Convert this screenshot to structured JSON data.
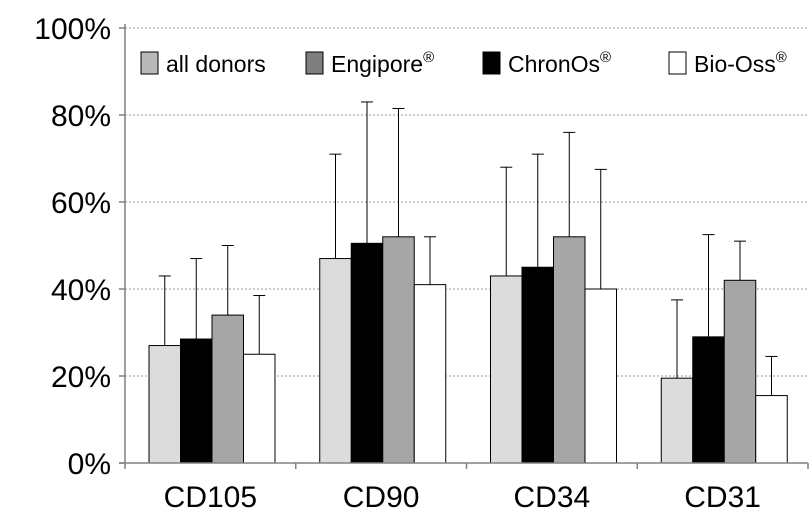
{
  "chart_data": {
    "type": "bar",
    "categories": [
      "CD105",
      "CD90",
      "CD34",
      "CD31"
    ],
    "series": [
      {
        "name": "all donors",
        "values": [
          27,
          47,
          43,
          19.5
        ],
        "errors": [
          16,
          24,
          25,
          18
        ],
        "color": "#dcdcdc"
      },
      {
        "name": "ChronOs",
        "values": [
          28.5,
          50.5,
          45,
          29
        ],
        "errors": [
          18.5,
          32.5,
          26,
          23.5
        ],
        "color": "#000000"
      },
      {
        "name": "Engipore",
        "values": [
          34,
          52,
          52,
          42
        ],
        "errors": [
          16,
          29.5,
          24,
          9
        ],
        "color": "#a6a6a6"
      },
      {
        "name": "Bio-Oss",
        "values": [
          25,
          41,
          40,
          15.5
        ],
        "errors": [
          13.5,
          11,
          27.5,
          9
        ],
        "color": "#ffffff"
      }
    ],
    "legend": [
      {
        "name": "all donors",
        "superscript": "",
        "color": "#b9b9b9"
      },
      {
        "name": "Engipore",
        "superscript": "®",
        "color": "#7f7f7f"
      },
      {
        "name": "ChronOs",
        "superscript": "®",
        "color": "#000000"
      },
      {
        "name": "Bio-Oss",
        "superscript": "®",
        "color": "#ffffff"
      }
    ],
    "legend_placement": "top",
    "yticks": [
      "0%",
      "20%",
      "40%",
      "60%",
      "80%",
      "100%"
    ],
    "ylim": [
      0,
      100
    ],
    "grid": true,
    "title": "",
    "xlabel": "",
    "ylabel": ""
  }
}
